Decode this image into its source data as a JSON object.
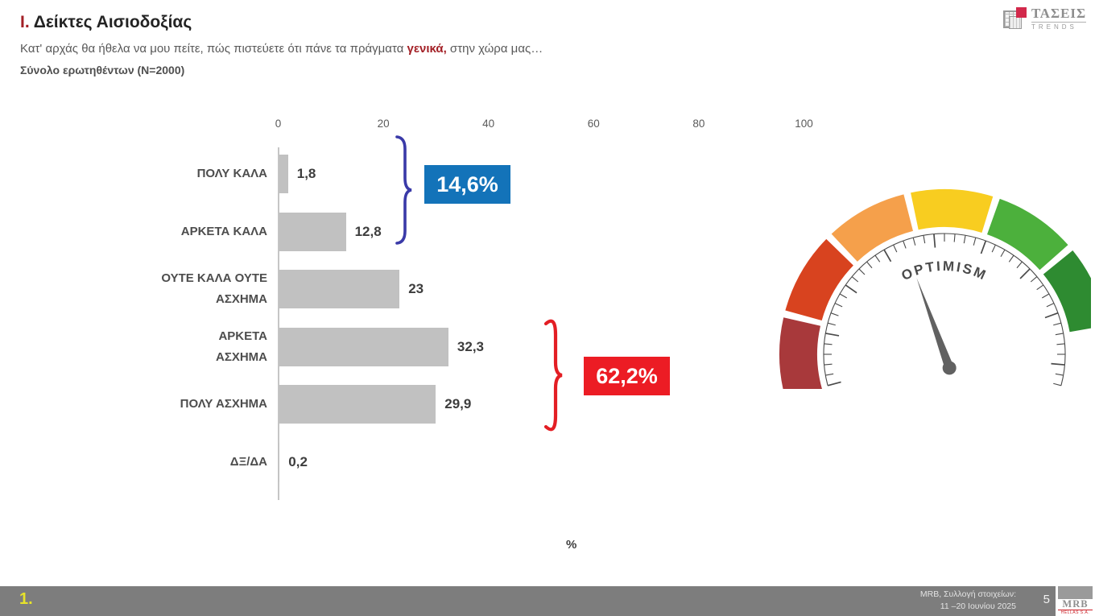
{
  "header": {
    "title_prefix": "Ι.",
    "title_text": "Δείκτες Αισιοδοξίας",
    "subtitle_pre": "Κατ' αρχάς θα ήθελα να μου πείτε, πώς πιστεύετε ότι πάνε τα πράγματα ",
    "subtitle_highlight": "γενικά,",
    "subtitle_post": " στην χώρα μας…",
    "sample_line": "Σύνολο ερωτηθέντων (Ν=2000)"
  },
  "tases_logo": {
    "name": "ΤΑΣΕΙΣ",
    "sub": "TRENDS"
  },
  "chart_data": {
    "type": "bar",
    "orientation": "horizontal",
    "categories": [
      "ΠΟΛΥ ΚΑΛΑ",
      "ΑΡΚΕΤΑ ΚΑΛΑ",
      "ΟΥΤΕ ΚΑΛΑ ΟΥΤΕ ΑΣΧΗΜΑ",
      "ΑΡΚΕΤΑ ΑΣΧΗΜΑ",
      "ΠΟΛΥ ΑΣΧΗΜΑ",
      "ΔΞ/ΔΑ"
    ],
    "category_lines": [
      [
        "ΠΟΛΥ ΚΑΛΑ"
      ],
      [
        "ΑΡΚΕΤΑ ΚΑΛΑ"
      ],
      [
        "ΟΥΤΕ ΚΑΛΑ ΟΥΤΕ",
        "ΑΣΧΗΜΑ"
      ],
      [
        "ΑΡΚΕΤΑ",
        "ΑΣΧΗΜΑ"
      ],
      [
        "ΠΟΛΥ ΑΣΧΗΜΑ"
      ],
      [
        "ΔΞ/ΔΑ"
      ]
    ],
    "values": [
      1.8,
      12.8,
      23,
      32.3,
      29.9,
      0.2
    ],
    "value_labels": [
      "1,8",
      "12,8",
      "23",
      "32,3",
      "29,9",
      "0,2"
    ],
    "axis_ticks": [
      0,
      20,
      40,
      60,
      80,
      100
    ],
    "xlim": [
      0,
      100
    ],
    "xlabel": "%",
    "bar_color": "#c1c1c1",
    "grid": false,
    "annotations": [
      {
        "label": "14,6%",
        "box_color": "#1373b9",
        "brace_color": "#3a3aa8",
        "covers": [
          "ΠΟΛΥ ΚΑΛΑ",
          "ΑΡΚΕΤΑ ΚΑΛΑ"
        ]
      },
      {
        "label": "62,2%",
        "box_color": "#ec1c24",
        "brace_color": "#e31e24",
        "covers": [
          "ΑΡΚΕΤΑ ΑΣΧΗΜΑ",
          "ΠΟΛΥ ΑΣΧΗΜΑ"
        ]
      }
    ]
  },
  "gauge": {
    "label": "OPTIMISM",
    "segment_colors": [
      "#a8393b",
      "#d8431f",
      "#f5a04b",
      "#f8cd20",
      "#4cb03c",
      "#2e8b31"
    ],
    "needle_color": "#616161",
    "tick_color": "#4a4a4a",
    "needle_angle_deg": -20
  },
  "footer": {
    "index": "1.",
    "index_color": "#e7e32a",
    "source_line1": "MRB, Συλλογή στοιχείων:",
    "source_line2": "11 –20 Ιουνίου 2025",
    "page": "5",
    "mrb_logo": {
      "name": "MRB",
      "sub": "HELLAS S.A."
    }
  }
}
